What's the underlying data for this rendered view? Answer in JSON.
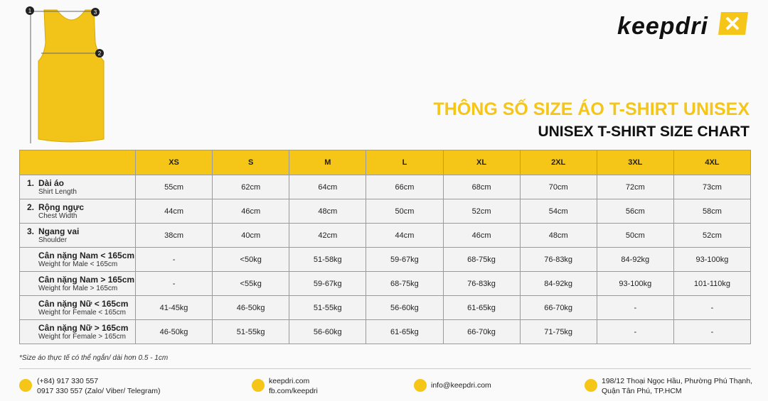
{
  "header": {
    "brand": "keepdri",
    "title_vi": "THÔNG SỐ SIZE ÁO T-SHIRT UNISEX",
    "title_en": "UNISEX T-SHIRT SIZE CHART"
  },
  "diagram": {
    "markers": [
      "1",
      "2",
      "3"
    ]
  },
  "table": {
    "sizes": [
      "XS",
      "S",
      "M",
      "L",
      "XL",
      "2XL",
      "3XL",
      "4XL"
    ],
    "rows": [
      {
        "number": "1.",
        "label_vi": "Dài áo",
        "label_en": "Shirt Length",
        "values": [
          "55cm",
          "62cm",
          "64cm",
          "66cm",
          "68cm",
          "70cm",
          "72cm",
          "73cm"
        ]
      },
      {
        "number": "2.",
        "label_vi": "Rộng ngực",
        "label_en": "Chest Width",
        "values": [
          "44cm",
          "46cm",
          "48cm",
          "50cm",
          "52cm",
          "54cm",
          "56cm",
          "58cm"
        ]
      },
      {
        "number": "3.",
        "label_vi": "Ngang vai",
        "label_en": "Shoulder",
        "values": [
          "38cm",
          "40cm",
          "42cm",
          "44cm",
          "46cm",
          "48cm",
          "50cm",
          "52cm"
        ]
      },
      {
        "label_vi": "Cân nặng Nam < 165cm",
        "label_en": "Weight for Male < 165cm",
        "values": [
          "-",
          "<50kg",
          "51-58kg",
          "59-67kg",
          "68-75kg",
          "76-83kg",
          "84-92kg",
          "93-100kg"
        ]
      },
      {
        "label_vi": "Cân nặng Nam > 165cm",
        "label_en": "Weight for Male > 165cm",
        "values": [
          "-",
          "<55kg",
          "59-67kg",
          "68-75kg",
          "76-83kg",
          "84-92kg",
          "93-100kg",
          "101-110kg"
        ]
      },
      {
        "label_vi": "Cân nặng Nữ < 165cm",
        "label_en": "Weight for Female < 165cm",
        "values": [
          "41-45kg",
          "46-50kg",
          "51-55kg",
          "56-60kg",
          "61-65kg",
          "66-70kg",
          "-",
          "-"
        ]
      },
      {
        "label_vi": "Cân nặng Nữ > 165cm",
        "label_en": "Weight for Female > 165cm",
        "values": [
          "46-50kg",
          "51-55kg",
          "56-60kg",
          "61-65kg",
          "66-70kg",
          "71-75kg",
          "-",
          "-"
        ]
      }
    ]
  },
  "note": "*Size áo thực tế có thể ngắn/ dài hơn 0.5 - 1cm",
  "footer": {
    "phone": [
      "(+84) 917 330 557",
      "0917 330 557 (Zalo/ Viber/ Telegram)"
    ],
    "web": [
      "keepdri.com",
      "fb.com/keepdri"
    ],
    "email": "info@keepdri.com",
    "address": [
      "198/12 Thoại Ngọc Hầu, Phường Phú Thạnh,",
      "Quận Tân Phú, TP.HCM"
    ]
  }
}
